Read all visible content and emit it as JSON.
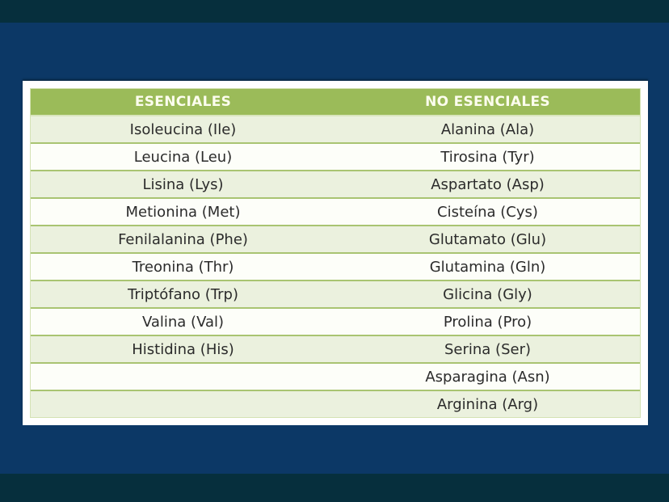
{
  "slide": {
    "table": {
      "col_headers": [
        "ESENCIALES",
        "NO ESENCIALES"
      ],
      "rows": [
        {
          "left": "Isoleucina (Ile)",
          "right": "Alanina (Ala)"
        },
        {
          "left": "Leucina (Leu)",
          "right": "Tirosina (Tyr)"
        },
        {
          "left": "Lisina (Lys)",
          "right": "Aspartato (Asp)"
        },
        {
          "left": "Metionina (Met)",
          "right": "Cisteína (Cys)"
        },
        {
          "left": "Fenilalanina (Phe)",
          "right": "Glutamato (Glu)"
        },
        {
          "left": "Treonina (Thr)",
          "right": "Glutamina (Gln)"
        },
        {
          "left": "Triptófano (Trp)",
          "right": "Glicina (Gly)"
        },
        {
          "left": "Valina (Val)",
          "right": "Prolina (Pro)"
        },
        {
          "left": "Histidina (His)",
          "right": "Serina (Ser)"
        },
        {
          "left": "",
          "right": "Asparagina (Asn)"
        },
        {
          "left": "",
          "right": "Arginina (Arg)"
        }
      ]
    },
    "colors": {
      "background_navy": "#0C3866",
      "band_dark_teal": "#062F3D",
      "frame_white": "#FFFFFF",
      "header_green": "#9BBB59",
      "header_text": "#FCFDEE",
      "row_light_green": "#EBF1DE",
      "row_white": "#FDFEF9",
      "row_border_olive": "#A9C472",
      "cell_text": "#2B2B2B"
    }
  }
}
